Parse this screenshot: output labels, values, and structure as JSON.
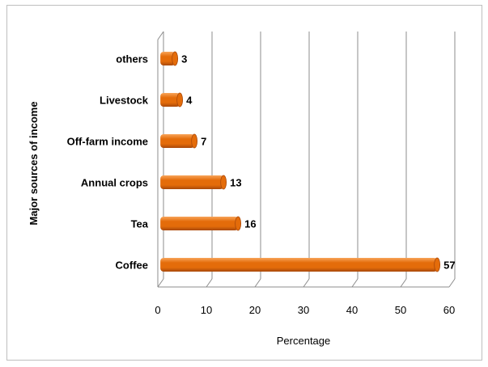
{
  "chart_data": {
    "type": "bar",
    "orientation": "horizontal",
    "style": "3d-cylinder",
    "categories": [
      "Coffee",
      "Tea",
      "Annual crops",
      "Off-farm income",
      "Livestock",
      "others"
    ],
    "values": [
      57,
      16,
      13,
      7,
      4,
      3
    ],
    "data_labels": [
      "57",
      "16",
      "13",
      "7",
      "4",
      "3"
    ],
    "xlabel": "Percentage",
    "ylabel": "Major sources of income",
    "xlim": [
      0,
      60
    ],
    "xticks": [
      "0",
      "10",
      "20",
      "30",
      "40",
      "50",
      "60"
    ],
    "grid": "vertical",
    "legend": "none",
    "bar_color": "#e46c0a",
    "bar_highlight": "#f8a55a",
    "bar_shadow": "#a9480a"
  }
}
